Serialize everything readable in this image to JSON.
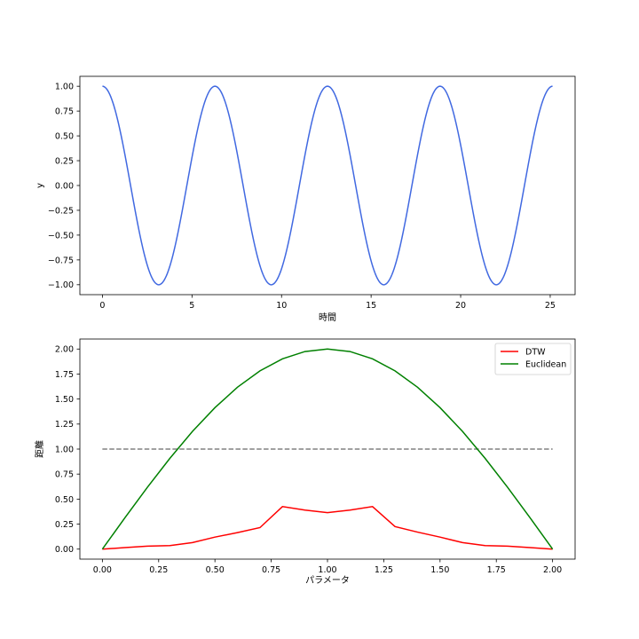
{
  "chart_data": [
    {
      "type": "line",
      "xlabel": "時間",
      "ylabel": "y",
      "xlim": [
        -1.26,
        26.39
      ],
      "ylim": [
        -1.1,
        1.1
      ],
      "xticks": [
        0,
        5,
        10,
        15,
        20,
        25
      ],
      "yticks": [
        -1.0,
        -0.75,
        -0.5,
        -0.25,
        0.0,
        0.25,
        0.5,
        0.75,
        1.0
      ],
      "xtick_labels": [
        "0",
        "5",
        "10",
        "15",
        "20",
        "25"
      ],
      "ytick_labels": [
        "−1.00",
        "−0.75",
        "−0.50",
        "−0.25",
        "0.00",
        "0.25",
        "0.50",
        "0.75",
        "1.00"
      ],
      "grid": false,
      "series": [
        {
          "function": "cos(x)",
          "x_range": [
            0,
            25.13
          ],
          "color": "#4169e1"
        }
      ]
    },
    {
      "type": "line",
      "xlabel": "パラメータ",
      "ylabel": "距離",
      "xlim": [
        -0.1,
        2.1
      ],
      "ylim": [
        -0.1,
        2.1
      ],
      "xticks": [
        0.0,
        0.25,
        0.5,
        0.75,
        1.0,
        1.25,
        1.5,
        1.75,
        2.0
      ],
      "yticks": [
        0.0,
        0.25,
        0.5,
        0.75,
        1.0,
        1.25,
        1.5,
        1.75,
        2.0
      ],
      "xtick_labels": [
        "0.00",
        "0.25",
        "0.50",
        "0.75",
        "1.00",
        "1.25",
        "1.50",
        "1.75",
        "2.00"
      ],
      "ytick_labels": [
        "0.00",
        "0.25",
        "0.50",
        "0.75",
        "1.00",
        "1.25",
        "1.50",
        "1.75",
        "2.00"
      ],
      "grid": false,
      "legend_position": "top-right",
      "x": [
        0.0,
        0.1,
        0.2,
        0.3,
        0.4,
        0.5,
        0.6,
        0.7,
        0.8,
        0.9,
        1.0,
        1.1,
        1.2,
        1.3,
        1.4,
        1.5,
        1.6,
        1.7,
        1.8,
        1.9,
        2.0
      ],
      "series": [
        {
          "name": "DTW",
          "color": "#ff0000",
          "values": [
            0.0,
            0.015,
            0.03,
            0.035,
            0.065,
            0.12,
            0.165,
            0.215,
            0.425,
            0.39,
            0.365,
            0.39,
            0.425,
            0.225,
            0.17,
            0.12,
            0.065,
            0.035,
            0.03,
            0.015,
            0.0
          ]
        },
        {
          "name": "Euclidean",
          "color": "#008000",
          "values": [
            0.0,
            0.313,
            0.618,
            0.908,
            1.176,
            1.414,
            1.618,
            1.782,
            1.902,
            1.975,
            2.0,
            1.975,
            1.902,
            1.782,
            1.618,
            1.414,
            1.176,
            0.908,
            0.618,
            0.313,
            0.0
          ]
        }
      ],
      "reference_line": {
        "y": 1.0,
        "x_range": [
          0.0,
          2.0
        ],
        "style": "dashed",
        "color": "#808080"
      }
    }
  ]
}
